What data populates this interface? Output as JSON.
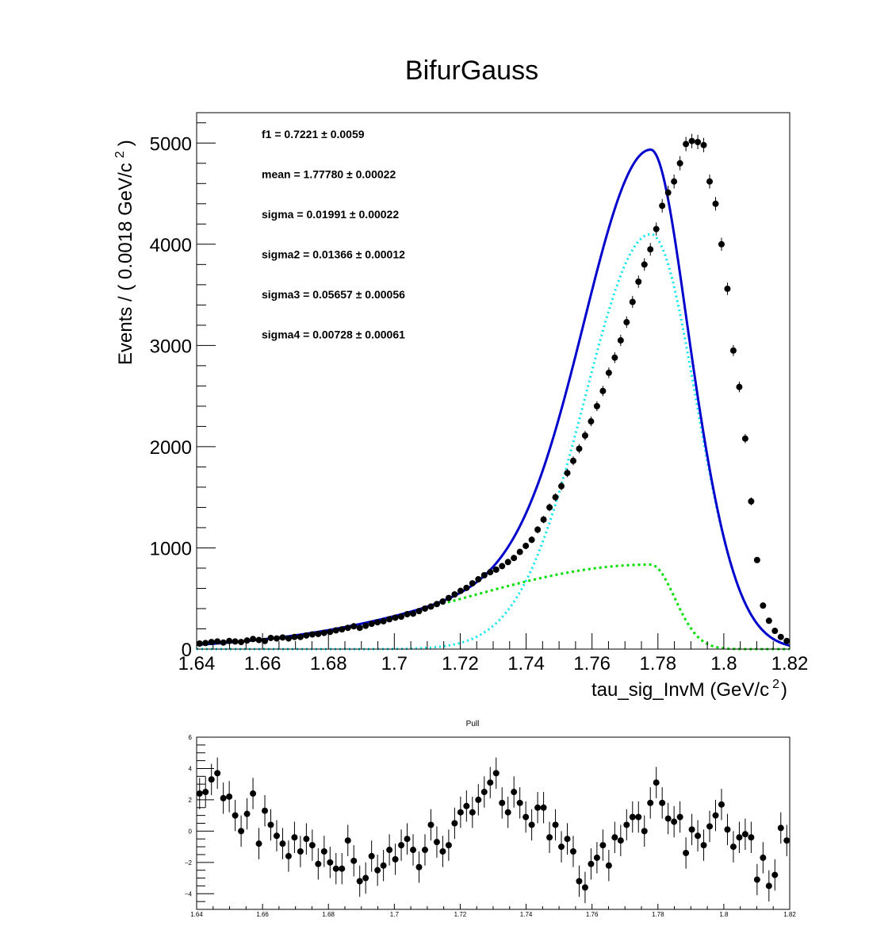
{
  "chart_data": [
    {
      "type": "scatter",
      "title": "BifurGauss",
      "xlabel": "tau_sig_InvM (GeV/c",
      "xlabel_sup": "2",
      "xlabel_close": ")",
      "ylabel": "Events / ( 0.0018 GeV/c",
      "ylabel_sup": "2",
      "ylabel_close": ")",
      "xlim": [
        1.64,
        1.82
      ],
      "ylim": [
        0,
        5300
      ],
      "x_ticks": [
        "1.64",
        "1.66",
        "1.68",
        "1.7",
        "1.72",
        "1.74",
        "1.76",
        "1.78",
        "1.8",
        "1.82"
      ],
      "y_ticks": [
        "0",
        "1000",
        "2000",
        "3000",
        "4000",
        "5000"
      ],
      "grid": false,
      "fit_params": [
        {
          "name": "f1",
          "value": "0.7221",
          "error": "0.0059"
        },
        {
          "name": "mean",
          "value": "1.77780",
          "error": "0.00022"
        },
        {
          "name": "sigma",
          "value": "0.01991",
          "error": "0.00022"
        },
        {
          "name": "sigma2",
          "value": "0.01366",
          "error": "0.00012"
        },
        {
          "name": "sigma3",
          "value": "0.05657",
          "error": "0.00056"
        },
        {
          "name": "sigma4",
          "value": "0.00728",
          "error": "0.00061"
        }
      ],
      "data_points": {
        "x": [
          1.6409,
          1.6427,
          1.6445,
          1.6463,
          1.6481,
          1.6499,
          1.6517,
          1.6535,
          1.6553,
          1.6571,
          1.6589,
          1.6607,
          1.6625,
          1.6643,
          1.6661,
          1.6679,
          1.6697,
          1.6715,
          1.6733,
          1.6751,
          1.6769,
          1.6787,
          1.6805,
          1.6823,
          1.6841,
          1.6859,
          1.6877,
          1.6895,
          1.6913,
          1.6931,
          1.6949,
          1.6967,
          1.6985,
          1.7003,
          1.7021,
          1.7039,
          1.7057,
          1.7075,
          1.7093,
          1.7111,
          1.7129,
          1.7147,
          1.7165,
          1.7183,
          1.7201,
          1.7219,
          1.7237,
          1.7255,
          1.7273,
          1.7291,
          1.7309,
          1.7327,
          1.7345,
          1.7363,
          1.7381,
          1.7399,
          1.7417,
          1.7435,
          1.7453,
          1.7471,
          1.7489,
          1.7507,
          1.7525,
          1.7543,
          1.7561,
          1.7579,
          1.7597,
          1.7615,
          1.7633,
          1.7651,
          1.7669,
          1.7687,
          1.7705,
          1.7723,
          1.7741,
          1.7759,
          1.7777,
          1.7795,
          1.7813,
          1.7831,
          1.7849,
          1.7867,
          1.7885,
          1.7903,
          1.7921,
          1.7939,
          1.7957,
          1.7975,
          1.7993,
          1.8011,
          1.8029,
          1.8047,
          1.8065,
          1.8083,
          1.8101,
          1.8119,
          1.8137,
          1.8155,
          1.8173,
          1.8191
        ],
        "y": [
          55,
          60,
          70,
          75,
          65,
          80,
          75,
          70,
          85,
          100,
          90,
          80,
          110,
          105,
          115,
          105,
          120,
          120,
          135,
          145,
          150,
          160,
          170,
          185,
          195,
          210,
          225,
          210,
          230,
          250,
          265,
          275,
          295,
          310,
          320,
          345,
          350,
          375,
          400,
          420,
          445,
          470,
          505,
          540,
          575,
          605,
          650,
          690,
          730,
          760,
          785,
          820,
          860,
          900,
          960,
          1020,
          1080,
          1180,
          1280,
          1400,
          1500,
          1610,
          1740,
          1860,
          1980,
          2110,
          2250,
          2400,
          2550,
          2730,
          2880,
          3050,
          3230,
          3430,
          3630,
          3800,
          3950,
          4150,
          4380,
          4510,
          4620,
          4800,
          4990,
          5020,
          5010,
          4980,
          4620,
          4400,
          4000,
          3560,
          2950,
          2590,
          2080,
          1460,
          880,
          430,
          280,
          180,
          120,
          80
        ],
        "err": [
          8,
          8,
          9,
          9,
          8,
          9,
          9,
          9,
          10,
          10,
          10,
          9,
          11,
          11,
          11,
          11,
          11,
          11,
          12,
          12,
          13,
          13,
          13,
          14,
          14,
          15,
          15,
          15,
          15,
          16,
          16,
          17,
          17,
          18,
          18,
          19,
          19,
          20,
          20,
          21,
          21,
          22,
          23,
          24,
          24,
          25,
          26,
          27,
          27,
          28,
          28,
          29,
          30,
          30,
          31,
          32,
          33,
          35,
          36,
          38,
          39,
          41,
          42,
          44,
          45,
          47,
          48,
          49,
          51,
          53,
          54,
          56,
          57,
          59,
          61,
          62,
          63,
          65,
          67,
          68,
          69,
          70,
          71,
          71,
          71,
          71,
          69,
          67,
          64,
          61,
          55,
          52,
          46,
          39,
          30,
          21,
          17,
          14,
          11,
          9
        ]
      },
      "pull": {
        "title": "Pull",
        "xlim": [
          1.64,
          1.82
        ],
        "ylim": [
          -5,
          6
        ],
        "x_ticks": [
          "1.64",
          "1.66",
          "1.68",
          "1.7",
          "1.72",
          "1.74",
          "1.76",
          "1.78",
          "1.8",
          "1.82"
        ],
        "y_ticks": [
          "−4",
          "−2",
          "0",
          "2",
          "4",
          "6"
        ],
        "y_tick_values": [
          -4,
          -2,
          0,
          2,
          4,
          6
        ],
        "values": [
          2.4,
          2.5,
          3.3,
          3.7,
          2.1,
          2.2,
          1.0,
          0.0,
          1.1,
          2.4,
          -0.8,
          1.3,
          0.4,
          -0.3,
          -0.8,
          -1.6,
          -0.4,
          -1.3,
          -0.5,
          -0.9,
          -2.1,
          -1.3,
          -2.0,
          -2.4,
          -2.4,
          -0.6,
          -1.9,
          -3.2,
          -3.0,
          -1.6,
          -2.5,
          -2.2,
          -1.2,
          -1.8,
          -0.9,
          -0.5,
          -1.2,
          -2.3,
          -1.2,
          0.4,
          -0.7,
          -1.3,
          -0.9,
          0.5,
          1.2,
          1.6,
          1.2,
          2.0,
          2.5,
          3.1,
          3.7,
          1.8,
          1.2,
          2.5,
          1.8,
          0.9,
          0.4,
          1.5,
          1.5,
          -0.4,
          0.4,
          -1.0,
          -0.5,
          -1.3,
          -3.2,
          -3.6,
          -2.1,
          -1.7,
          -0.9,
          -2.2,
          -0.4,
          -0.6,
          0.4,
          0.9,
          0.9,
          0.0,
          1.8,
          3.1,
          1.8,
          0.8,
          0.6,
          0.9,
          -1.4,
          0.1,
          -0.3,
          -0.9,
          0.3,
          1.0,
          1.7,
          0.1,
          -1.0,
          -0.4,
          -0.2,
          -0.4,
          -3.1,
          -1.7,
          -3.5,
          -2.8,
          0.2,
          -0.6
        ],
        "err": [
          1,
          1,
          1,
          1,
          1,
          1,
          1,
          1,
          1,
          1,
          1,
          1,
          1,
          1,
          1,
          1,
          1,
          1,
          1,
          1,
          1,
          1,
          1,
          1,
          1,
          1,
          1,
          1,
          1,
          1,
          1,
          1,
          1,
          1,
          1,
          1,
          1,
          1,
          1,
          1,
          1,
          1,
          1,
          1,
          1,
          1,
          1,
          1,
          1,
          1,
          1,
          1,
          1,
          1,
          1,
          1,
          1,
          1,
          1,
          1,
          1,
          1,
          1,
          1,
          1,
          1,
          1,
          1,
          1,
          1,
          1,
          1,
          1,
          1,
          1,
          1,
          1,
          1,
          1,
          1,
          1,
          1,
          1,
          1,
          1,
          1,
          1,
          1,
          1,
          1,
          1,
          1,
          1,
          1,
          1,
          1,
          1,
          1,
          1,
          1
        ]
      },
      "colors": {
        "total_fit": "#0000cc",
        "component_1": "#00e5ee",
        "component_2": "#00dd00",
        "data": "#000000",
        "frame": "#000000"
      }
    }
  ]
}
